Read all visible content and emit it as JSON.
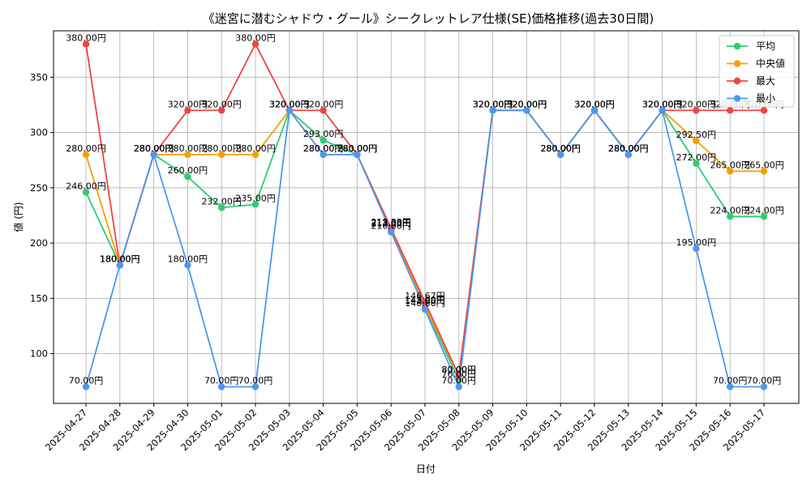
{
  "chart_data": {
    "type": "line",
    "title": "《迷宮に潜むシャドウ・グール》シークレットレア仕様(SE)価格推移(過去30日間)",
    "xlabel": "日付",
    "ylabel": "値 (円)",
    "ylim": [
      55,
      392
    ],
    "yticks": [
      100,
      150,
      200,
      250,
      300,
      350
    ],
    "grid": true,
    "legend_position": "top-right",
    "label_suffix": "円",
    "x": [
      "2025-04-27",
      "2025-04-28",
      "2025-04-29",
      "2025-04-30",
      "2025-05-01",
      "2025-05-02",
      "2025-05-03",
      "2025-05-04",
      "2025-05-05",
      "2025-05-06",
      "2025-05-07",
      "2025-05-08",
      "2025-05-09",
      "2025-05-10",
      "2025-05-11",
      "2025-05-12",
      "2025-05-13",
      "2025-05-14",
      "2025-05-15",
      "2025-05-16",
      "2025-05-17"
    ],
    "series": [
      {
        "name": "平均",
        "color": "#2ecc71",
        "values": [
          246,
          180,
          280,
          260,
          232,
          235,
          320,
          293,
          280,
          212,
          142,
          76,
          320,
          320,
          280,
          320,
          280,
          320,
          272,
          224,
          224
        ]
      },
      {
        "name": "中央値",
        "color": "#f5a000",
        "values": [
          280,
          180,
          280,
          280,
          280,
          280,
          320,
          280,
          280,
          213,
          143,
          80,
          320,
          320,
          280,
          320,
          280,
          320,
          292.5,
          265,
          265
        ]
      },
      {
        "name": "最大",
        "color": "#ef4444",
        "values": [
          380,
          180,
          280,
          320,
          320,
          380,
          320,
          320,
          280,
          213.33,
          146.67,
          80,
          320,
          320,
          280,
          320,
          280,
          320,
          320,
          320,
          320
        ]
      },
      {
        "name": "最小",
        "color": "#4f96f0",
        "values": [
          70,
          180,
          280,
          180,
          70,
          70,
          320,
          280,
          280,
          210,
          140,
          70,
          320,
          320,
          280,
          320,
          280,
          320,
          195,
          70,
          70
        ]
      }
    ]
  }
}
